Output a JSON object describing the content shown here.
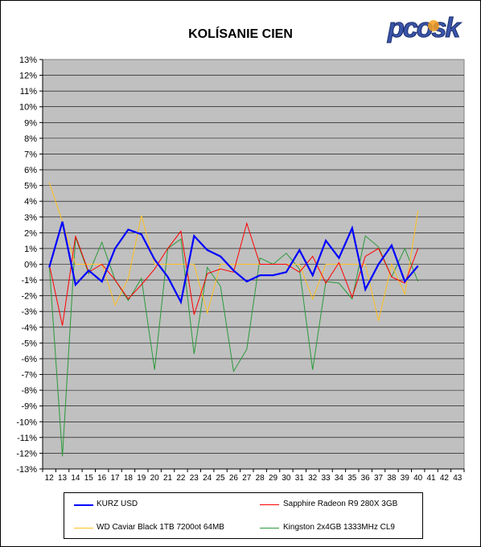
{
  "brand": {
    "logo_text": "pcosk"
  },
  "chart_data": {
    "type": "line",
    "title": "KOLÍSANIE CIEN",
    "xlabel": "",
    "ylabel": "",
    "ylim": [
      -13,
      13
    ],
    "y_tick_step": 1,
    "y_tick_format": "percent",
    "categories": [
      "12",
      "13",
      "14",
      "15",
      "16",
      "17",
      "18",
      "19",
      "20",
      "21",
      "22",
      "23",
      "24",
      "25",
      "26",
      "27",
      "28",
      "29",
      "30",
      "31",
      "32",
      "33",
      "34",
      "35",
      "36",
      "37",
      "38",
      "39",
      "40",
      "41",
      "42",
      "43"
    ],
    "grid": true,
    "legend_position": "bottom",
    "series": [
      {
        "name": "KURZ USD",
        "color": "#0000ff",
        "width": 2.2,
        "values": [
          -0.2,
          2.7,
          -1.3,
          -0.4,
          -1.1,
          1.0,
          2.2,
          1.9,
          0.3,
          -0.8,
          -2.4,
          1.8,
          0.9,
          0.5,
          -0.4,
          -1.1,
          -0.7,
          -0.7,
          -0.5,
          0.9,
          -0.7,
          1.5,
          0.4,
          2.3,
          -1.6,
          0.0,
          1.2,
          -1.1,
          -0.1,
          null,
          null,
          null
        ]
      },
      {
        "name": "Sapphire Radeon R9 280X 3GB",
        "color": "#ff0000",
        "width": 1,
        "values": [
          0.0,
          -3.9,
          1.8,
          -0.5,
          0.0,
          -1.0,
          -2.2,
          -1.3,
          -0.3,
          1.0,
          2.1,
          -3.2,
          -0.6,
          -0.3,
          -0.5,
          2.6,
          0.0,
          0.0,
          0.0,
          -0.5,
          0.5,
          -1.2,
          0.1,
          -2.1,
          0.5,
          1.0,
          -0.8,
          -1.2,
          1.0,
          null,
          null,
          null
        ]
      },
      {
        "name": "WD Caviar Black 1TB 7200ot 64MB",
        "color": "#ffc020",
        "width": 1,
        "values": [
          5.2,
          2.7,
          0.0,
          0.0,
          0.0,
          -2.6,
          -0.9,
          3.1,
          0.0,
          0.0,
          0.0,
          0.0,
          -3.1,
          0.0,
          0.0,
          0.0,
          0.0,
          0.0,
          0.0,
          0.0,
          -2.2,
          0.0,
          0.0,
          0.0,
          0.0,
          -3.6,
          0.0,
          -1.9,
          3.4,
          null,
          null,
          null
        ]
      },
      {
        "name": "Kingston 2x4GB 1333MHz CL9",
        "color": "#2a9a3a",
        "width": 1,
        "values": [
          0.0,
          -12.2,
          1.7,
          -0.6,
          1.4,
          -1.0,
          -2.3,
          -0.9,
          -6.7,
          1.0,
          1.6,
          -5.7,
          -0.2,
          -1.4,
          -6.8,
          -5.4,
          0.4,
          0.0,
          0.7,
          -0.3,
          -6.7,
          -1.1,
          -1.2,
          -2.2,
          1.8,
          1.1,
          -0.8,
          1.0,
          -1.1,
          null,
          null,
          null
        ]
      }
    ]
  }
}
